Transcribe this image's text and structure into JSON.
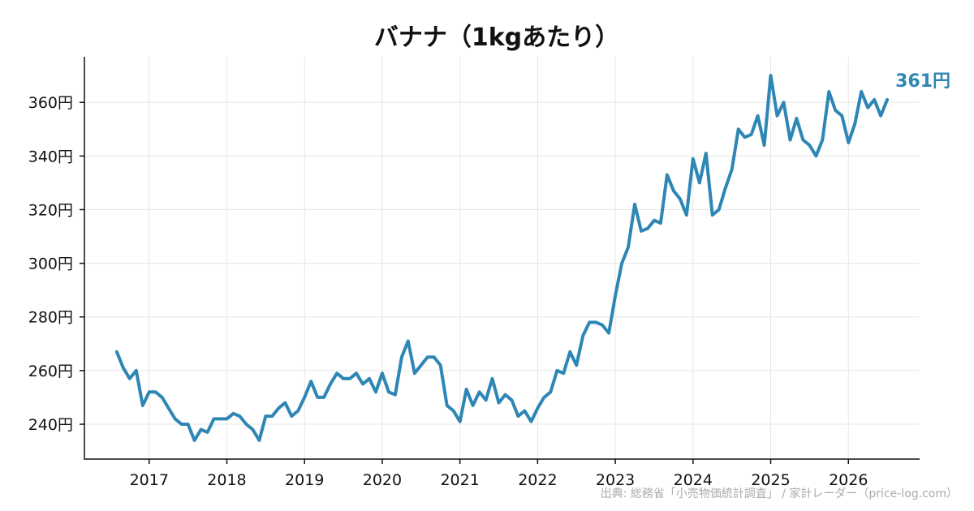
{
  "chart_data": {
    "type": "line",
    "title": "バナナ（1kgあたり）",
    "xlabel": "",
    "ylabel": "",
    "x_tick_labels": [
      "2017",
      "2018",
      "2019",
      "2020",
      "2021",
      "2022",
      "2023",
      "2024",
      "2025",
      "2026"
    ],
    "y_ticks": [
      240,
      260,
      280,
      300,
      320,
      340,
      360
    ],
    "y_tick_labels": [
      "240円",
      "260円",
      "280円",
      "300円",
      "320円",
      "340円",
      "360円"
    ],
    "xlim": [
      "2016-03",
      "2026-12"
    ],
    "ylim": [
      227,
      377
    ],
    "grid": true,
    "series": [
      {
        "color": "#2e86b5",
        "end_label": "361円",
        "points": [
          [
            "2016-08",
            267
          ],
          [
            "2016-09",
            261
          ],
          [
            "2016-10",
            257
          ],
          [
            "2016-11",
            260
          ],
          [
            "2016-12",
            247
          ],
          [
            "2017-01",
            252
          ],
          [
            "2017-02",
            252
          ],
          [
            "2017-03",
            250
          ],
          [
            "2017-04",
            246
          ],
          [
            "2017-05",
            242
          ],
          [
            "2017-06",
            240
          ],
          [
            "2017-07",
            240
          ],
          [
            "2017-08",
            234
          ],
          [
            "2017-09",
            238
          ],
          [
            "2017-10",
            237
          ],
          [
            "2017-11",
            242
          ],
          [
            "2017-12",
            242
          ],
          [
            "2018-01",
            242
          ],
          [
            "2018-02",
            244
          ],
          [
            "2018-03",
            243
          ],
          [
            "2018-04",
            240
          ],
          [
            "2018-05",
            238
          ],
          [
            "2018-06",
            234
          ],
          [
            "2018-07",
            243
          ],
          [
            "2018-08",
            243
          ],
          [
            "2018-09",
            246
          ],
          [
            "2018-10",
            248
          ],
          [
            "2018-11",
            243
          ],
          [
            "2018-12",
            245
          ],
          [
            "2019-01",
            250
          ],
          [
            "2019-02",
            256
          ],
          [
            "2019-03",
            250
          ],
          [
            "2019-04",
            250
          ],
          [
            "2019-05",
            255
          ],
          [
            "2019-06",
            259
          ],
          [
            "2019-07",
            257
          ],
          [
            "2019-08",
            257
          ],
          [
            "2019-09",
            259
          ],
          [
            "2019-10",
            255
          ],
          [
            "2019-11",
            257
          ],
          [
            "2019-12",
            252
          ],
          [
            "2020-01",
            259
          ],
          [
            "2020-02",
            252
          ],
          [
            "2020-03",
            251
          ],
          [
            "2020-04",
            265
          ],
          [
            "2020-05",
            271
          ],
          [
            "2020-06",
            259
          ],
          [
            "2020-07",
            262
          ],
          [
            "2020-08",
            265
          ],
          [
            "2020-09",
            265
          ],
          [
            "2020-10",
            262
          ],
          [
            "2020-11",
            247
          ],
          [
            "2020-12",
            245
          ],
          [
            "2021-01",
            241
          ],
          [
            "2021-02",
            253
          ],
          [
            "2021-03",
            247
          ],
          [
            "2021-04",
            252
          ],
          [
            "2021-05",
            249
          ],
          [
            "2021-06",
            257
          ],
          [
            "2021-07",
            248
          ],
          [
            "2021-08",
            251
          ],
          [
            "2021-09",
            249
          ],
          [
            "2021-10",
            243
          ],
          [
            "2021-11",
            245
          ],
          [
            "2021-12",
            241
          ],
          [
            "2022-01",
            246
          ],
          [
            "2022-02",
            250
          ],
          [
            "2022-03",
            252
          ],
          [
            "2022-04",
            260
          ],
          [
            "2022-05",
            259
          ],
          [
            "2022-06",
            267
          ],
          [
            "2022-07",
            262
          ],
          [
            "2022-08",
            273
          ],
          [
            "2022-09",
            278
          ],
          [
            "2022-10",
            278
          ],
          [
            "2022-11",
            277
          ],
          [
            "2022-12",
            274
          ],
          [
            "2023-01",
            288
          ],
          [
            "2023-02",
            300
          ],
          [
            "2023-03",
            306
          ],
          [
            "2023-04",
            322
          ],
          [
            "2023-05",
            312
          ],
          [
            "2023-06",
            313
          ],
          [
            "2023-07",
            316
          ],
          [
            "2023-08",
            315
          ],
          [
            "2023-09",
            333
          ],
          [
            "2023-10",
            327
          ],
          [
            "2023-11",
            324
          ],
          [
            "2023-12",
            318
          ],
          [
            "2024-01",
            339
          ],
          [
            "2024-02",
            330
          ],
          [
            "2024-03",
            341
          ],
          [
            "2024-04",
            318
          ],
          [
            "2024-05",
            320
          ],
          [
            "2024-06",
            328
          ],
          [
            "2024-07",
            335
          ],
          [
            "2024-08",
            350
          ],
          [
            "2024-09",
            347
          ],
          [
            "2024-10",
            348
          ],
          [
            "2024-11",
            355
          ],
          [
            "2024-12",
            344
          ],
          [
            "2025-01",
            370
          ],
          [
            "2025-02",
            355
          ],
          [
            "2025-03",
            360
          ],
          [
            "2025-04",
            346
          ],
          [
            "2025-05",
            354
          ],
          [
            "2025-06",
            346
          ],
          [
            "2025-07",
            344
          ],
          [
            "2025-08",
            340
          ],
          [
            "2025-09",
            346
          ],
          [
            "2025-10",
            364
          ],
          [
            "2025-11",
            357
          ],
          [
            "2025-12",
            355
          ],
          [
            "2026-01",
            345
          ],
          [
            "2026-02",
            352
          ],
          [
            "2026-03",
            364
          ],
          [
            "2026-04",
            358
          ],
          [
            "2026-05",
            361
          ],
          [
            "2026-06",
            355
          ],
          [
            "2026-07",
            361
          ]
        ]
      }
    ]
  },
  "source": "出典: 総務省「小売物価統計調査」 / 家計レーダー（price-log.com）"
}
